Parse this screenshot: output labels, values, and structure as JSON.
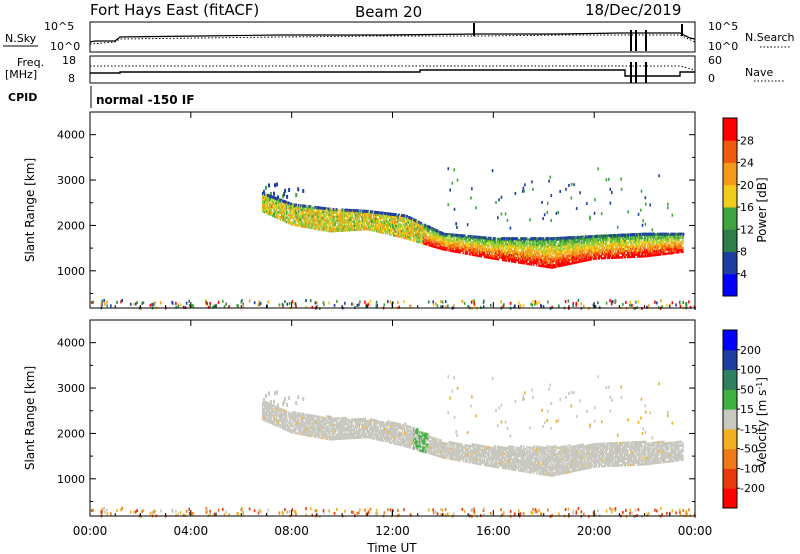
{
  "header": {
    "station": "Fort Hays East (fitACF)",
    "beam": "Beam 20",
    "date": "18/Dec/2019"
  },
  "noise_panel": {
    "left_label": "N.Sky",
    "right_label": "N.Search",
    "left_ticks": [
      "10^5",
      "10^0"
    ],
    "right_ticks": [
      "10^5",
      "10^0"
    ]
  },
  "freq_panel": {
    "left_label_line1": "Freq.",
    "left_label_line2": "[MHz]",
    "right_label": "Nave",
    "left_ticks": [
      "18",
      "8"
    ],
    "right_ticks": [
      "60",
      "0"
    ]
  },
  "cpid_panel": {
    "label": "CPID",
    "text": "normal -150 IF"
  },
  "colors": {
    "power_scale": [
      "#0000ff",
      "#1f4fb4",
      "#2e7e4a",
      "#3fa33f",
      "#8fcc3a",
      "#f2cc1a",
      "#f29a1a",
      "#f25a0d",
      "#ff0000"
    ],
    "velocity_scale": [
      "#ff0000",
      "#e83a0d",
      "#f07a1a",
      "#f0b020",
      "#c8c8c0",
      "#c8c8c0",
      "#40b040",
      "#2e8060",
      "#1f3fa0",
      "#0000ff"
    ]
  },
  "chart_data": [
    {
      "type": "heatmap",
      "name": "power",
      "ylabel": "Slant Range [km]",
      "xlabel": "",
      "xlim": [
        0,
        24
      ],
      "ylim": [
        180,
        4500
      ],
      "y_ticks": [
        "1000",
        "2000",
        "3000",
        "4000"
      ],
      "colorbar_label": "Power [dB]",
      "colorbar_ticks": [
        "4",
        "8",
        "12",
        "16",
        "20",
        "24",
        "28"
      ],
      "colorbar_range": [
        0,
        32
      ],
      "echo_band": [
        {
          "time": 6.8,
          "range_low": 2300,
          "range_high": 2700
        },
        {
          "time": 8.0,
          "range_low": 2000,
          "range_high": 2450
        },
        {
          "time": 9.5,
          "range_low": 1850,
          "range_high": 2350
        },
        {
          "time": 11.0,
          "range_low": 1900,
          "range_high": 2300
        },
        {
          "time": 12.5,
          "range_low": 1700,
          "range_high": 2200
        },
        {
          "time": 14.0,
          "range_low": 1450,
          "range_high": 1800
        },
        {
          "time": 16.0,
          "range_low": 1250,
          "range_high": 1700
        },
        {
          "time": 18.3,
          "range_low": 1050,
          "range_high": 1700
        },
        {
          "time": 20.0,
          "range_low": 1250,
          "range_high": 1750
        },
        {
          "time": 22.0,
          "range_low": 1300,
          "range_high": 1800
        },
        {
          "time": 23.5,
          "range_low": 1400,
          "range_high": 1800
        }
      ]
    },
    {
      "type": "heatmap",
      "name": "velocity",
      "ylabel": "Slant Range [km]",
      "xlabel": "Time UT",
      "xlim": [
        0,
        24
      ],
      "ylim": [
        180,
        4500
      ],
      "y_ticks": [
        "1000",
        "2000",
        "3000",
        "4000"
      ],
      "x_ticks": [
        "00:00",
        "04:00",
        "08:00",
        "12:00",
        "16:00",
        "20:00",
        "00:00"
      ],
      "colorbar_label": "Velocity [m s",
      "colorbar_unit_exp": "-1",
      "colorbar_label_close": "]",
      "colorbar_ticks": [
        "-200",
        "-100",
        "-50",
        "-15",
        "15",
        "50",
        "100",
        "200"
      ]
    }
  ]
}
